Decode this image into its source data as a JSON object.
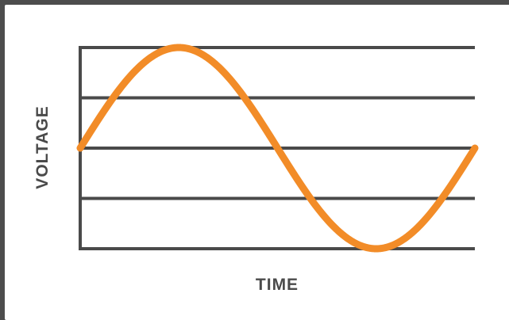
{
  "chart_data": {
    "type": "line",
    "title": "",
    "xlabel": "TIME",
    "ylabel": "VOLTAGE",
    "grid": true,
    "x": [
      0,
      0.25,
      0.5,
      0.75,
      1
    ],
    "series": [
      {
        "values": [
          0,
          1,
          0,
          -1,
          0
        ]
      }
    ],
    "ylim": [
      -1,
      1
    ],
    "curve": "sine",
    "line_color": "#f28c28",
    "axis_color": "#4a4a4a"
  }
}
